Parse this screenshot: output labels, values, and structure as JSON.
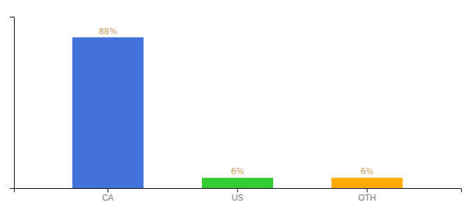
{
  "chart_data": {
    "type": "bar",
    "categories": [
      "CA",
      "US",
      "OTH"
    ],
    "values": [
      88,
      6,
      6
    ],
    "value_labels": [
      "88%",
      "6%",
      "6%"
    ],
    "colors": [
      "#4472db",
      "#33cc33",
      "#ffaa00"
    ],
    "ylim": [
      0,
      100
    ],
    "data_labels": true,
    "tick_labels": "x"
  }
}
